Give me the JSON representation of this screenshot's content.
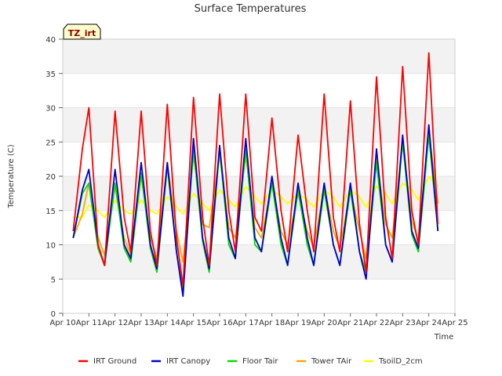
{
  "chart_data": {
    "type": "line",
    "title": "Surface Temperatures",
    "xlabel": "Time",
    "ylabel": "Temperature (C)",
    "badge": "TZ_irt",
    "x_ticks": [
      "Apr 10",
      "Apr 11",
      "Apr 12",
      "Apr 13",
      "Apr 14",
      "Apr 15",
      "Apr 16",
      "Apr 17",
      "Apr 18",
      "Apr 19",
      "Apr 20",
      "Apr 21",
      "Apr 22",
      "Apr 23",
      "Apr 24",
      "Apr 25"
    ],
    "y_ticks": [
      "0",
      "5",
      "10",
      "15",
      "20",
      "25",
      "30",
      "35",
      "40"
    ],
    "xlim": [
      10,
      25
    ],
    "ylim": [
      0,
      40
    ],
    "grid": "horizontal bands",
    "legend_position": "bottom",
    "x": [
      10.4,
      10.75,
      11.0,
      11.35,
      11.6,
      12.0,
      12.35,
      12.6,
      13.0,
      13.35,
      13.6,
      14.0,
      14.35,
      14.6,
      15.0,
      15.35,
      15.6,
      16.0,
      16.35,
      16.6,
      17.0,
      17.35,
      17.6,
      18.0,
      18.35,
      18.6,
      19.0,
      19.35,
      19.6,
      20.0,
      20.35,
      20.6,
      21.0,
      21.35,
      21.6,
      22.0,
      22.35,
      22.6,
      23.0,
      23.35,
      23.6,
      24.0,
      24.35
    ],
    "series": [
      {
        "name": "IRT Ground",
        "color": "#ff0000",
        "values": [
          12.0,
          24.0,
          30.0,
          10.0,
          7.0,
          29.5,
          14.0,
          9.0,
          29.5,
          12.0,
          7.0,
          30.5,
          11.0,
          4.0,
          31.5,
          14.0,
          7.0,
          32.0,
          15.0,
          9.0,
          32.0,
          14.0,
          12.0,
          28.5,
          15.0,
          9.0,
          26.0,
          15.0,
          9.0,
          32.0,
          14.0,
          9.0,
          31.0,
          13.0,
          6.0,
          34.5,
          14.0,
          8.0,
          36.0,
          15.0,
          10.0,
          38.0,
          13.0
        ]
      },
      {
        "name": "IRT Canopy",
        "color": "#0000cc",
        "values": [
          11.0,
          18.0,
          21.0,
          10.0,
          7.0,
          21.0,
          10.0,
          8.0,
          22.0,
          10.0,
          6.5,
          22.0,
          9.0,
          2.5,
          25.5,
          11.0,
          6.5,
          24.5,
          11.0,
          8.0,
          25.5,
          11.0,
          9.0,
          20.0,
          11.0,
          7.0,
          19.0,
          11.0,
          7.0,
          19.0,
          10.0,
          7.0,
          19.0,
          9.0,
          5.0,
          24.0,
          10.0,
          7.5,
          26.0,
          12.0,
          9.5,
          27.5,
          12.0
        ]
      },
      {
        "name": "Floor Tair",
        "color": "#00dd00",
        "values": [
          11.0,
          17.5,
          19.0,
          9.5,
          7.0,
          19.0,
          9.5,
          7.5,
          20.5,
          9.5,
          6.0,
          21.5,
          9.0,
          3.0,
          24.0,
          10.5,
          6.0,
          24.0,
          10.0,
          8.0,
          24.0,
          10.0,
          9.0,
          19.0,
          10.0,
          7.0,
          18.0,
          10.0,
          7.0,
          18.0,
          10.0,
          7.0,
          18.0,
          9.0,
          6.0,
          22.0,
          10.0,
          7.5,
          25.0,
          11.5,
          9.0,
          26.0,
          12.0
        ]
      },
      {
        "name": "Tower TAir",
        "color": "#ffa500",
        "values": [
          11.0,
          14.5,
          19.0,
          11.0,
          8.5,
          18.5,
          11.0,
          8.5,
          20.0,
          11.0,
          8.0,
          22.0,
          12.0,
          7.5,
          23.0,
          13.0,
          12.5,
          23.0,
          12.5,
          11.0,
          23.0,
          12.5,
          11.0,
          19.0,
          12.0,
          10.0,
          17.5,
          12.0,
          9.5,
          18.5,
          12.0,
          9.5,
          18.0,
          12.0,
          8.0,
          22.5,
          13.0,
          11.0,
          25.0,
          13.5,
          10.5,
          26.5,
          16.0
        ]
      },
      {
        "name": "TsoilD_2cm",
        "color": "#ffff00",
        "values": [
          14.0,
          14.0,
          15.8,
          15.0,
          14.0,
          16.5,
          15.0,
          14.5,
          16.5,
          15.0,
          14.5,
          17.0,
          15.5,
          14.5,
          17.5,
          16.0,
          15.0,
          18.0,
          16.5,
          15.5,
          18.5,
          17.0,
          16.0,
          18.0,
          17.0,
          16.0,
          17.5,
          16.5,
          15.5,
          18.0,
          17.0,
          15.5,
          18.0,
          17.0,
          15.5,
          18.5,
          17.5,
          16.0,
          19.0,
          18.0,
          16.5,
          20.0,
          18.5
        ]
      }
    ]
  }
}
